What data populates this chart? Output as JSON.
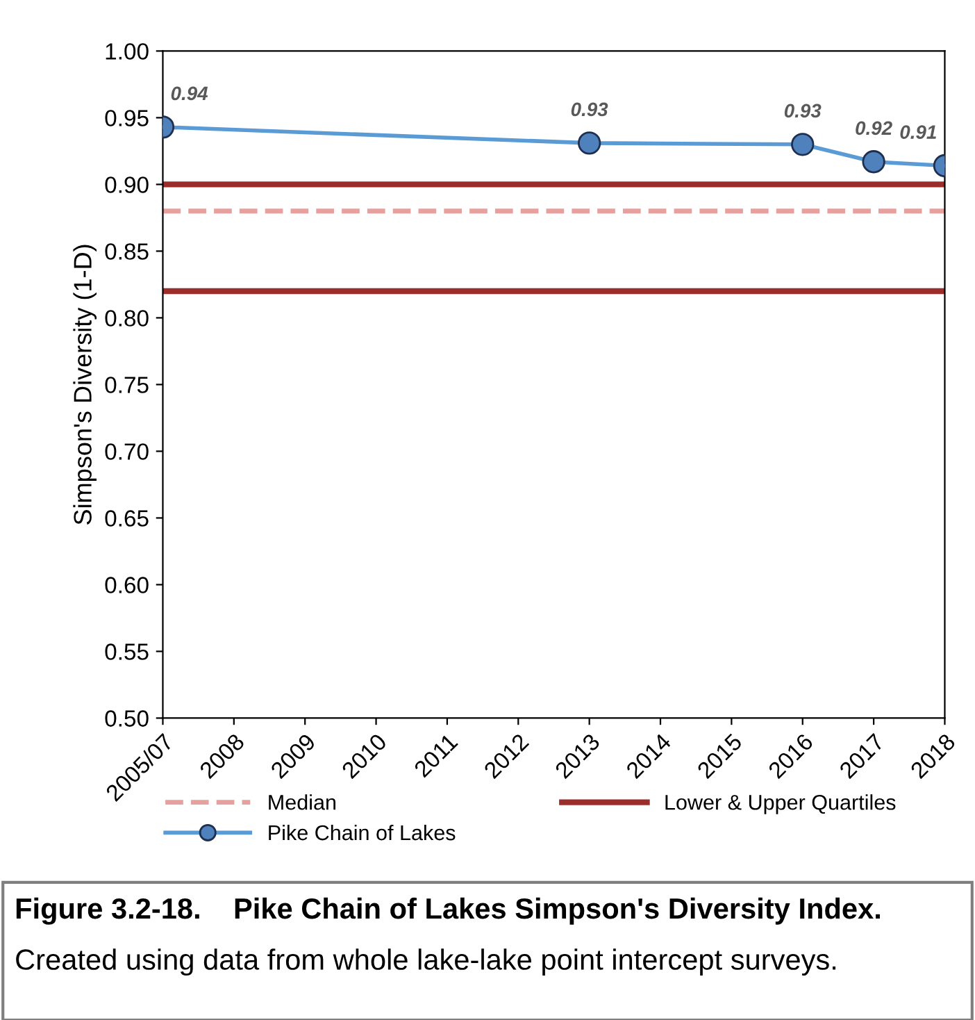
{
  "chart_data": {
    "type": "line",
    "ylabel": "Simpson's Diversity (1-D)",
    "categories": [
      "2005/07",
      "2008",
      "2009",
      "2010",
      "2011",
      "2012",
      "2013",
      "2014",
      "2015",
      "2016",
      "2017",
      "2018"
    ],
    "series": [
      {
        "name": "Pike Chain of Lakes",
        "color": "#5b9bd5",
        "values": [
          0.943,
          null,
          null,
          null,
          null,
          null,
          0.931,
          null,
          null,
          0.93,
          0.917,
          0.914
        ],
        "value_labels": [
          "0.94",
          null,
          null,
          null,
          null,
          null,
          "0.93",
          null,
          null,
          "0.93",
          "0.92",
          "0.91"
        ]
      }
    ],
    "ref_lines": [
      {
        "axis": "y",
        "value": 0.88,
        "label": "Median",
        "color": "#e6a09e",
        "line_style": "dashed"
      },
      {
        "axis": "y",
        "value": 0.9,
        "label": "Lower & Upper Quartiles",
        "color": "#9b2d2a",
        "line_style": "solid"
      },
      {
        "axis": "y",
        "value": 0.82,
        "color": "#9b2d2a",
        "line_style": "solid"
      }
    ],
    "ylim": [
      0.5,
      1.0
    ],
    "yticks": [
      {
        "value": 0.5,
        "label": "0.50"
      },
      {
        "value": 0.55,
        "label": "0.55"
      },
      {
        "value": 0.6,
        "label": "0.60"
      },
      {
        "value": 0.65,
        "label": "0.65"
      },
      {
        "value": 0.7,
        "label": "0.70"
      },
      {
        "value": 0.75,
        "label": "0.75"
      },
      {
        "value": 0.8,
        "label": "0.80"
      },
      {
        "value": 0.85,
        "label": "0.85"
      },
      {
        "value": 0.9,
        "label": "0.90"
      },
      {
        "value": 0.95,
        "label": "0.95"
      },
      {
        "value": 1.0,
        "label": "1.00"
      }
    ],
    "grid": false,
    "legend": "bottom",
    "marker": "circle",
    "line_style": "solid",
    "annotations": [
      "Figure 3.2-18.    Pike Chain of Lakes Simpson's Diversity Index.",
      "Created using data from whole lake-lake point intercept surveys."
    ]
  }
}
